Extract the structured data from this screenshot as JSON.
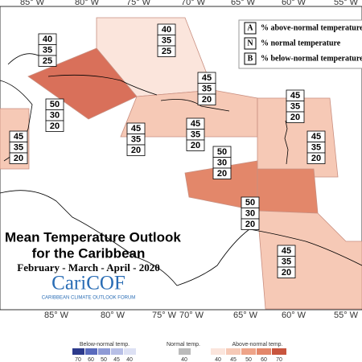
{
  "top_axis": [
    "85° W",
    "80° W",
    "75° W",
    "70° W",
    "65° W",
    "60° W",
    "55° W"
  ],
  "bottom_axis": [
    "85° W",
    "80° W",
    "75° W",
    "70° W",
    "65° W",
    "60° W",
    "55° W"
  ],
  "legend": [
    {
      "key": "A",
      "text": "% above-normal temperature"
    },
    {
      "key": "N",
      "text": "% normal temperature"
    },
    {
      "key": "B",
      "text": "% below-normal temperature"
    }
  ],
  "forecasts": [
    [
      40,
      35,
      25
    ],
    [
      40,
      35,
      25
    ],
    [
      45,
      35,
      20
    ],
    [
      45,
      35,
      20
    ],
    [
      50,
      30,
      20
    ],
    [
      45,
      35,
      20
    ],
    [
      45,
      35,
      20
    ],
    [
      45,
      35,
      20
    ],
    [
      45,
      35,
      20
    ],
    [
      50,
      30,
      20
    ],
    [
      50,
      30,
      20
    ],
    [
      45,
      35,
      20
    ]
  ],
  "title": {
    "line1": "Mean Temperature Outlook",
    "line2": "for the Caribbean",
    "period": "February - March - April - 2020",
    "logo": "CariCOF",
    "logo_sub": "CARIBBEAN CLIMATE OUTLOOK FORUM"
  },
  "colorbar": {
    "below_label": "Below-normal temp.",
    "normal_label": "Normal temp.",
    "above_label": "Above-normal temp.",
    "below_ticks": [
      70,
      60,
      50,
      45,
      40
    ],
    "normal_ticks": [
      40
    ],
    "above_ticks": [
      40,
      45,
      50,
      60,
      70
    ]
  }
}
